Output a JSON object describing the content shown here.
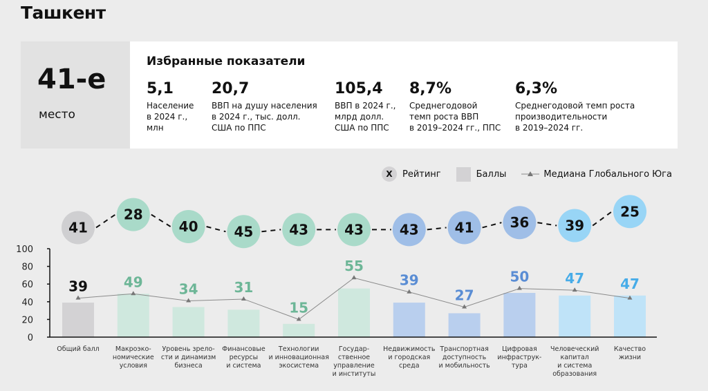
{
  "title": "Ташкент",
  "rank": {
    "value": "41-е",
    "label": "место"
  },
  "indicators": {
    "title": "Избранные показатели",
    "items": [
      {
        "value": "5,1",
        "label": "Население\nв 2024 г.,\nмлн"
      },
      {
        "value": "20,7",
        "label": "ВВП на душу населения\nв 2024 г., тыс. долл.\nСША по ППС"
      },
      {
        "value": "105,4",
        "label": "ВВП в 2024 г.,\nмлрд долл.\nСША по ППС"
      },
      {
        "value": "8,7%",
        "label": "Среднегодовой\nтемп роста ВВП\nв 2019–2024 гг., ППС"
      },
      {
        "value": "6,3%",
        "label": "Среднегодовой темп роста\nпроизводительности\nв 2019–2024 гг."
      }
    ]
  },
  "legend": {
    "rank_symbol": "X",
    "rank": "Рейтинг",
    "score": "Баллы",
    "median": "Медиана Глобального Юга"
  },
  "chart_data": {
    "type": "bar",
    "ylim": [
      0,
      100
    ],
    "yticks": [
      "0",
      "20",
      "40",
      "60",
      "80",
      "100"
    ],
    "categories": [
      "Общий балл",
      "Макроэко-\nномические\nусловия",
      "Уровень зрело-\nсти и динамизм\nбизнеса",
      "Финансовые\nресурсы\nи система",
      "Технологии\nи инновационная\nэкосистема",
      "Государ-\nственное\nуправление\nи институты",
      "Недвижимость\nи городская\nсреда",
      "Транспортная\nдоступность\nи мобильность",
      "Цифровая\nинфраструк-\nтура",
      "Человеческий\nкапитал\nи система\nобразования",
      "Качество\nжизни"
    ],
    "series": [
      {
        "name": "Баллы",
        "values": [
          39,
          49,
          34,
          31,
          15,
          55,
          39,
          27,
          50,
          47,
          47
        ]
      },
      {
        "name": "Медиана Глобального Юга",
        "values": [
          44,
          49,
          41,
          43,
          20,
          67,
          51,
          34,
          55,
          53,
          44
        ]
      },
      {
        "name": "Рейтинг",
        "values": [
          41,
          28,
          40,
          45,
          43,
          43,
          43,
          41,
          36,
          39,
          25
        ]
      }
    ],
    "groups": [
      "gray",
      "green",
      "green",
      "green",
      "green",
      "green",
      "blue",
      "blue",
      "blue",
      "lightblue",
      "lightblue"
    ],
    "colors": {
      "gray": {
        "bar": "#d3d2d4",
        "circle": "#cfcfd1",
        "text": "#111111"
      },
      "green": {
        "bar": "#cfe8de",
        "circle": "#a9dac9",
        "text": "#6db697"
      },
      "blue": {
        "bar": "#b9cfee",
        "circle": "#9fbee7",
        "text": "#5a8dd4"
      },
      "lightblue": {
        "bar": "#bfe3f8",
        "circle": "#98d5f6",
        "text": "#47ace8"
      }
    }
  }
}
